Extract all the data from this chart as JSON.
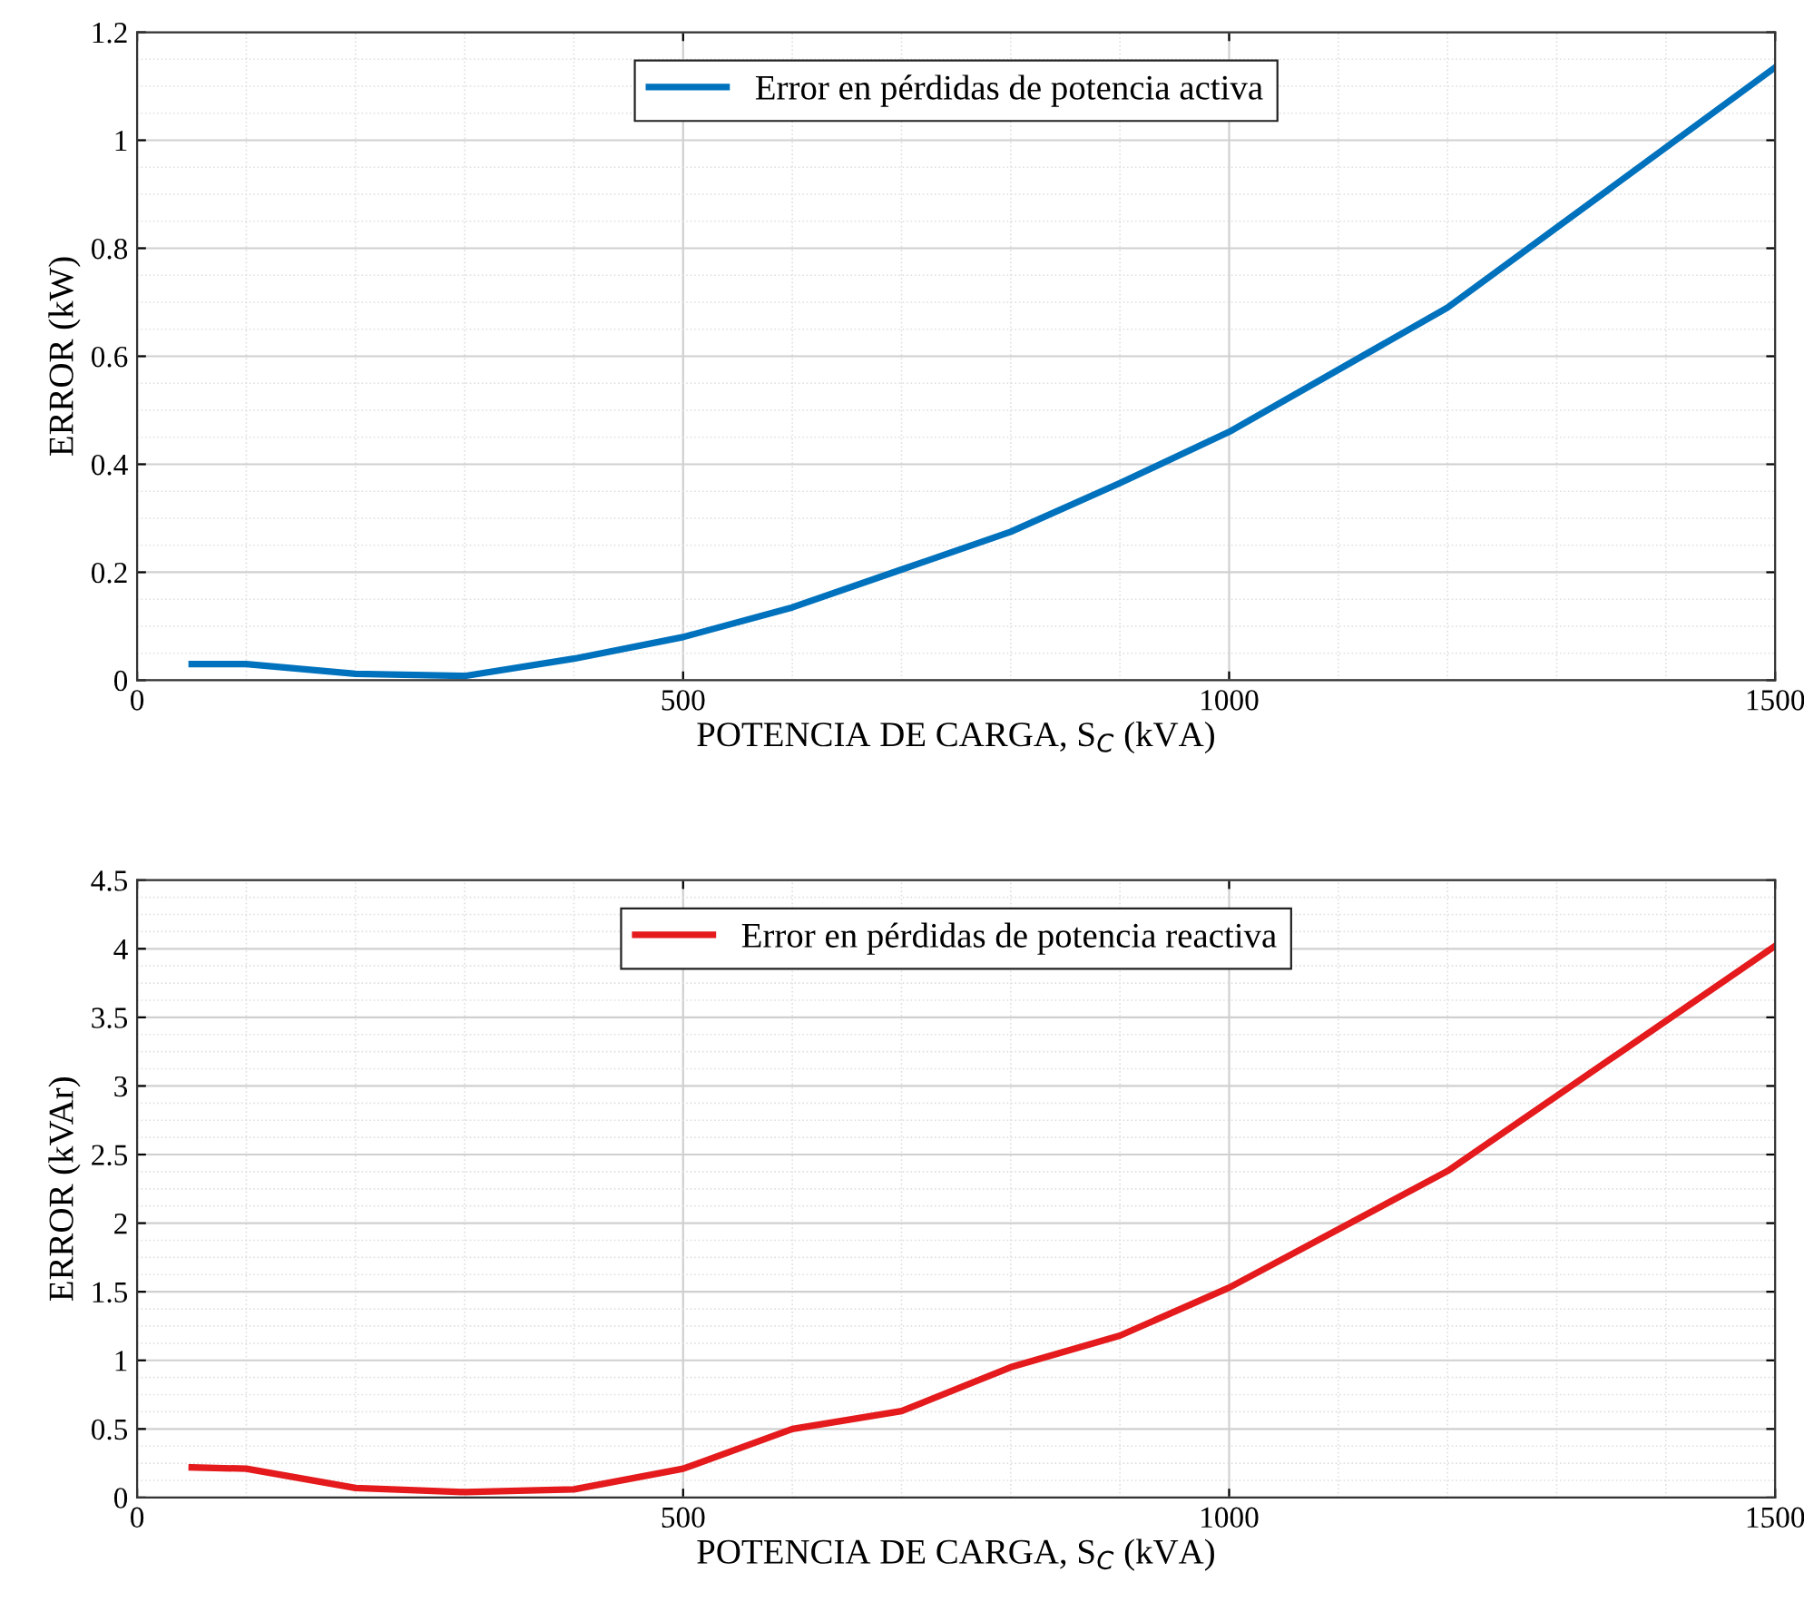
{
  "chart_data": [
    {
      "type": "line",
      "xlabel": "POTENCIA DE CARGA, S$_{C}$ (kVA)",
      "ylabel": "ERROR (kW)",
      "x": [
        50,
        100,
        200,
        300,
        400,
        500,
        600,
        700,
        800,
        900,
        1000,
        1200,
        1500
      ],
      "series": [
        {
          "name": "Error en pérdidas de potencia activa",
          "color": "#0072bd",
          "values": [
            0.03,
            0.03,
            0.012,
            0.008,
            0.04,
            0.08,
            0.135,
            0.205,
            0.275,
            0.365,
            0.46,
            0.69,
            1.135
          ]
        }
      ],
      "xlim": [
        0,
        1500
      ],
      "xticks": [
        0,
        500,
        1000,
        1500
      ],
      "ylim": [
        0,
        1.2
      ],
      "yticks": [
        0,
        0.2,
        0.4,
        0.6,
        0.8,
        1,
        1.2
      ],
      "grid": true,
      "legend": "top",
      "marker": "none",
      "line_style": "solid"
    },
    {
      "type": "line",
      "xlabel": "POTENCIA DE CARGA, S$_{C}$ (kVA)",
      "ylabel": "ERROR (kVAr)",
      "x": [
        50,
        100,
        200,
        300,
        400,
        500,
        600,
        700,
        800,
        900,
        1000,
        1200,
        1500
      ],
      "series": [
        {
          "name": "Error en pérdidas de potencia reactiva",
          "color": "#e41a1c",
          "values": [
            0.22,
            0.21,
            0.07,
            0.04,
            0.06,
            0.21,
            0.5,
            0.63,
            0.95,
            1.18,
            1.53,
            2.38,
            4.02
          ]
        }
      ],
      "xlim": [
        0,
        1500
      ],
      "xticks": [
        0,
        500,
        1000,
        1500
      ],
      "ylim": [
        0,
        4.5
      ],
      "yticks": [
        0,
        0.5,
        1,
        1.5,
        2,
        2.5,
        3,
        3.5,
        4,
        4.5
      ],
      "grid": true,
      "legend": "top",
      "marker": "none",
      "line_style": "solid"
    }
  ]
}
